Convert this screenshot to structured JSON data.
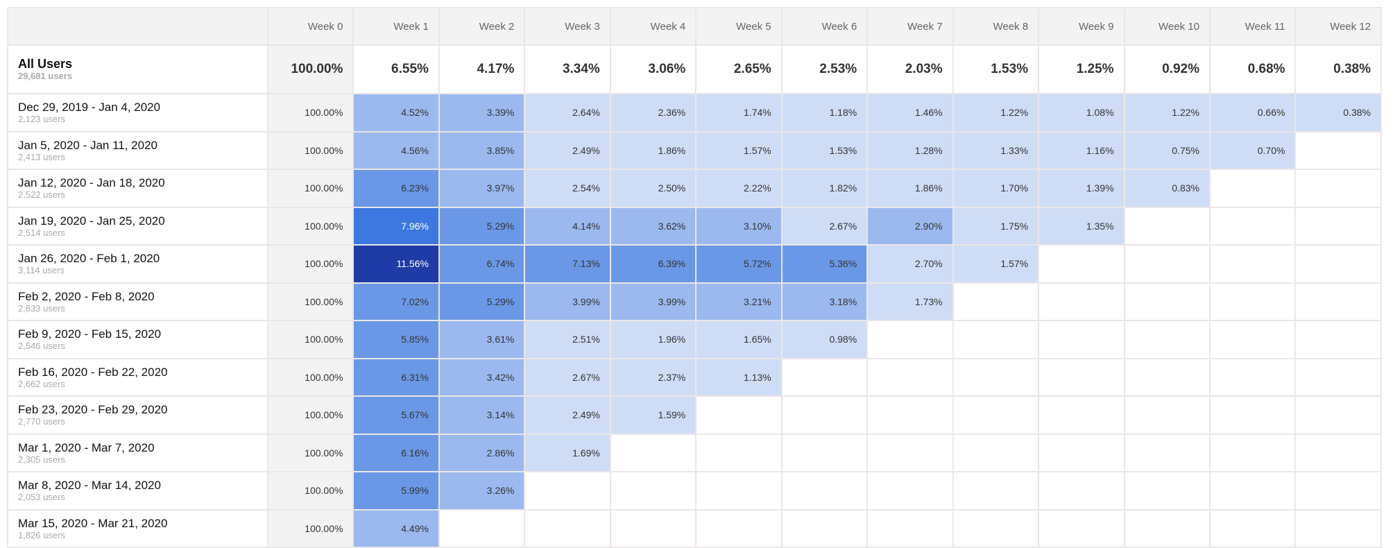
{
  "columns": [
    "Week 0",
    "Week 1",
    "Week 2",
    "Week 3",
    "Week 4",
    "Week 5",
    "Week 6",
    "Week 7",
    "Week 8",
    "Week 9",
    "Week 10",
    "Week 11",
    "Week 12"
  ],
  "all_users": {
    "label": "All Users",
    "users": "29,681 users",
    "values": [
      "100.00%",
      "6.55%",
      "4.17%",
      "3.34%",
      "3.06%",
      "2.65%",
      "2.53%",
      "2.03%",
      "1.53%",
      "1.25%",
      "0.92%",
      "0.68%",
      "0.38%"
    ]
  },
  "colors": {
    "tier0": "#cfdcf6",
    "tier1": "#9bb9ef",
    "tier2": "#6b98e6",
    "tier3": "#3c78e0",
    "tier4": "#1f3ba5",
    "week0": "#f3f3f3",
    "border": "#ebe6e7"
  },
  "cohorts": [
    {
      "label": "Dec 29, 2019 - Jan 4, 2020",
      "users": "2,123 users",
      "values": [
        "100.00%",
        "4.52%",
        "3.39%",
        "2.64%",
        "2.36%",
        "1.74%",
        "1.18%",
        "1.46%",
        "1.22%",
        "1.08%",
        "1.22%",
        "0.66%",
        "0.38%"
      ]
    },
    {
      "label": "Jan 5, 2020 - Jan 11, 2020",
      "users": "2,413 users",
      "values": [
        "100.00%",
        "4.56%",
        "3.85%",
        "2.49%",
        "1.86%",
        "1.57%",
        "1.53%",
        "1.28%",
        "1.33%",
        "1.16%",
        "0.75%",
        "0.70%"
      ]
    },
    {
      "label": "Jan 12, 2020 - Jan 18, 2020",
      "users": "2,522 users",
      "values": [
        "100.00%",
        "6.23%",
        "3.97%",
        "2.54%",
        "2.50%",
        "2.22%",
        "1.82%",
        "1.86%",
        "1.70%",
        "1.39%",
        "0.83%"
      ]
    },
    {
      "label": "Jan 19, 2020 - Jan 25, 2020",
      "users": "2,514 users",
      "values": [
        "100.00%",
        "7.96%",
        "5.29%",
        "4.14%",
        "3.62%",
        "3.10%",
        "2.67%",
        "2.90%",
        "1.75%",
        "1.35%"
      ]
    },
    {
      "label": "Jan 26, 2020 - Feb 1, 2020",
      "users": "3,114 users",
      "values": [
        "100.00%",
        "11.56%",
        "6.74%",
        "7.13%",
        "6.39%",
        "5.72%",
        "5.36%",
        "2.70%",
        "1.57%"
      ]
    },
    {
      "label": "Feb 2, 2020 - Feb 8, 2020",
      "users": "2,833 users",
      "values": [
        "100.00%",
        "7.02%",
        "5.29%",
        "3.99%",
        "3.99%",
        "3.21%",
        "3.18%",
        "1.73%"
      ]
    },
    {
      "label": "Feb 9, 2020 - Feb 15, 2020",
      "users": "2,546 users",
      "values": [
        "100.00%",
        "5.85%",
        "3.61%",
        "2.51%",
        "1.96%",
        "1.65%",
        "0.98%"
      ]
    },
    {
      "label": "Feb 16, 2020 - Feb 22, 2020",
      "users": "2,662 users",
      "values": [
        "100.00%",
        "6.31%",
        "3.42%",
        "2.67%",
        "2.37%",
        "1.13%"
      ]
    },
    {
      "label": "Feb 23, 2020 - Feb 29, 2020",
      "users": "2,770 users",
      "values": [
        "100.00%",
        "5.67%",
        "3.14%",
        "2.49%",
        "1.59%"
      ]
    },
    {
      "label": "Mar 1, 2020 - Mar 7, 2020",
      "users": "2,305 users",
      "values": [
        "100.00%",
        "6.16%",
        "2.86%",
        "1.69%"
      ]
    },
    {
      "label": "Mar 8, 2020 - Mar 14, 2020",
      "users": "2,053 users",
      "values": [
        "100.00%",
        "5.99%",
        "3.26%"
      ]
    },
    {
      "label": "Mar 15, 2020 - Mar 21, 2020",
      "users": "1,826 users",
      "values": [
        "100.00%",
        "4.49%"
      ]
    }
  ]
}
